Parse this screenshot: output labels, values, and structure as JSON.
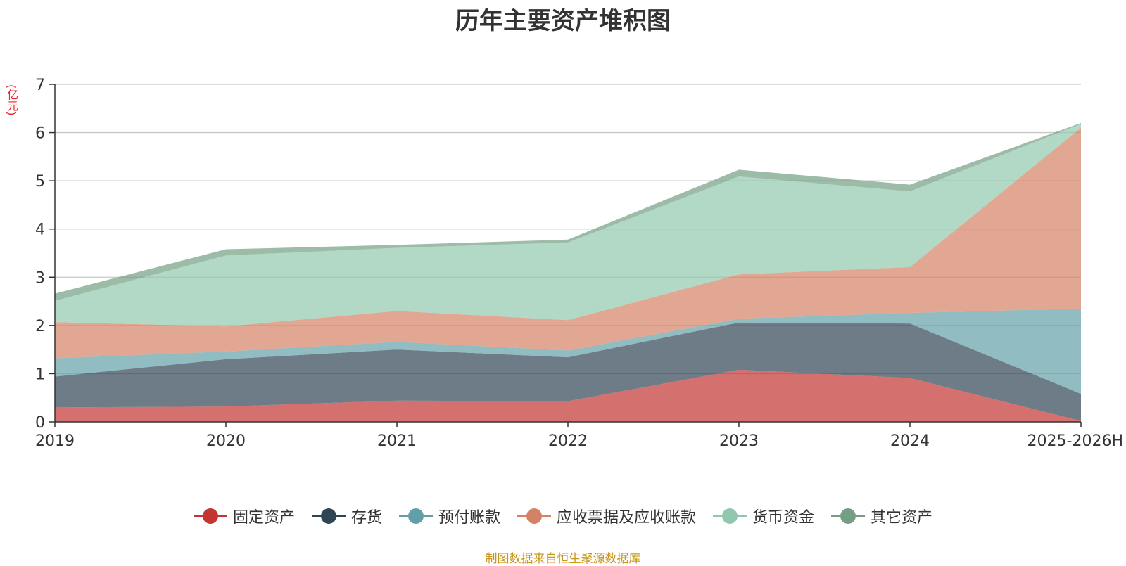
{
  "chart_data": {
    "type": "area",
    "stacked": true,
    "title": "历年主要资产堆积图",
    "ylabel": "(亿元)",
    "xlabel": "",
    "categories": [
      "2019",
      "2020",
      "2021",
      "2022",
      "2023",
      "2024",
      "2025-2026H"
    ],
    "ylim": [
      0,
      7
    ],
    "yticks": [
      "0",
      "1",
      "2",
      "3",
      "4",
      "5",
      "6",
      "7"
    ],
    "grid": true,
    "legend_position": "bottom",
    "series": [
      {
        "name": "固定资产",
        "color": "#c23531",
        "values": [
          0.3,
          0.32,
          0.44,
          0.43,
          1.08,
          0.91,
          0.02
        ]
      },
      {
        "name": "存货",
        "color": "#2f4554",
        "values": [
          0.64,
          0.98,
          1.06,
          0.91,
          0.98,
          1.13,
          0.56
        ]
      },
      {
        "name": "预付账款",
        "color": "#61a0a8",
        "values": [
          0.38,
          0.16,
          0.16,
          0.14,
          0.08,
          0.22,
          1.77
        ]
      },
      {
        "name": "应收票据及应收账款",
        "color": "#d48265",
        "values": [
          0.75,
          0.52,
          0.64,
          0.63,
          0.92,
          0.95,
          3.75
        ]
      },
      {
        "name": "货币资金",
        "color": "#91c7ae",
        "values": [
          0.44,
          1.47,
          1.31,
          1.61,
          2.03,
          1.57,
          0.08
        ]
      },
      {
        "name": "其它资产",
        "color": "#749f83",
        "values": [
          0.15,
          0.13,
          0.06,
          0.06,
          0.14,
          0.14,
          0.02
        ]
      }
    ]
  },
  "source_note": "制图数据来自恒生聚源数据库"
}
